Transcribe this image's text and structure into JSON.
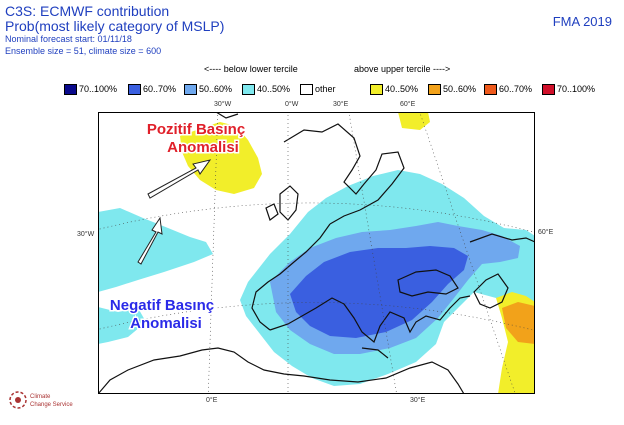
{
  "header": {
    "title": "C3S: ECMWF contribution",
    "subtitle": "Prob(most likely category of MSLP)",
    "period": "FMA 2019",
    "meta_start": "Nominal forecast start: 01/11/18",
    "meta_size": "Ensemble size = 51, climate size = 600"
  },
  "tercile": {
    "below": "<---- below lower tercile",
    "above": "above upper tercile ---->"
  },
  "legend": [
    {
      "label": "70..100%",
      "color": "#0a0a8c"
    },
    {
      "label": "60..70%",
      "color": "#3a5fe0"
    },
    {
      "label": "50..60%",
      "color": "#6fa8ee"
    },
    {
      "label": "40..50%",
      "color": "#7fe8ee"
    },
    {
      "label": "other",
      "color": "#ffffff"
    },
    {
      "label": "40..50%",
      "color": "#f2ee2a"
    },
    {
      "label": "50..60%",
      "color": "#f2a21a"
    },
    {
      "label": "60..70%",
      "color": "#ef5a1c"
    },
    {
      "label": "70..100%",
      "color": "#d0102a"
    }
  ],
  "map": {
    "ticks_top": [
      "30°W",
      "0°W",
      "30°E",
      "60°E"
    ],
    "tick_left": "30°W",
    "tick_right": "60°E",
    "ticks_bottom": [
      "0°E",
      "30°E"
    ],
    "colors": {
      "cyan": "#7fe8ee",
      "lightblue": "#6fa8ee",
      "blue": "#3a5fe0",
      "yellow": "#f2ee2a",
      "orange": "#f2a21a"
    }
  },
  "annotations": {
    "positive_line1": "Pozitif Basınç",
    "positive_line2": "Anomalisi",
    "negative_line1": "Negatif Basınç",
    "negative_line2": "Anomalisi"
  },
  "logo": {
    "line1": "Climate",
    "line2": "Change Service"
  }
}
